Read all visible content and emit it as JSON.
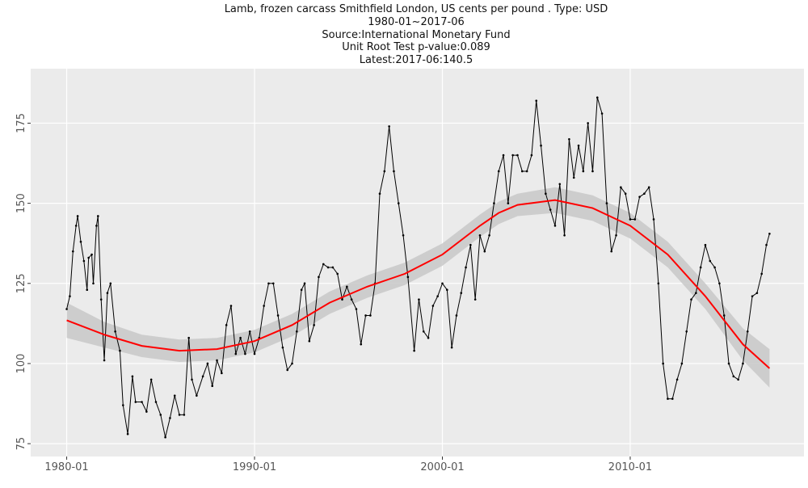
{
  "chart_data": {
    "type": "line",
    "title": "Lamb, frozen carcass Smithfield London, US cents per pound . Type: USD",
    "subtitle": [
      "1980-01~2017-06",
      "Source:International Monetary Fund",
      "Unit Root Test p-value:0.089",
      "Latest:2017-06:140.5"
    ],
    "x": [
      "1980-01",
      "1980-03",
      "1980-05",
      "1980-07",
      "1980-08",
      "1980-10",
      "1980-12",
      "1981-02",
      "1981-03",
      "1981-05",
      "1981-06",
      "1981-08",
      "1981-09",
      "1981-11",
      "1982-01",
      "1982-03",
      "1982-05",
      "1982-08",
      "1982-11",
      "1983-01",
      "1983-04",
      "1983-07",
      "1983-09",
      "1984-01",
      "1984-04",
      "1984-07",
      "1984-10",
      "1985-01",
      "1985-04",
      "1985-07",
      "1985-10",
      "1986-01",
      "1986-04",
      "1986-07",
      "1986-09",
      "1986-12",
      "1987-04",
      "1987-07",
      "1987-10",
      "1988-01",
      "1988-04",
      "1988-07",
      "1988-10",
      "1989-01",
      "1989-04",
      "1989-07",
      "1989-10",
      "1990-01",
      "1990-04",
      "1990-07",
      "1990-10",
      "1991-01",
      "1991-04",
      "1991-07",
      "1991-10",
      "1992-01",
      "1992-04",
      "1992-07",
      "1992-09",
      "1992-12",
      "1993-03",
      "1993-06",
      "1993-09",
      "1993-12",
      "1994-03",
      "1994-06",
      "1994-09",
      "1994-12",
      "1995-03",
      "1995-06",
      "1995-09",
      "1995-12",
      "1996-03",
      "1996-06",
      "1996-09",
      "1996-12",
      "1997-03",
      "1997-06",
      "1997-09",
      "1997-12",
      "1998-03",
      "1998-07",
      "1998-10",
      "1999-01",
      "1999-04",
      "1999-07",
      "1999-10",
      "2000-01",
      "2000-04",
      "2000-07",
      "2000-10",
      "2001-01",
      "2001-04",
      "2001-07",
      "2001-10",
      "2002-01",
      "2002-04",
      "2002-07",
      "2002-10",
      "2003-01",
      "2003-04",
      "2003-07",
      "2003-10",
      "2004-01",
      "2004-04",
      "2004-07",
      "2004-10",
      "2005-01",
      "2005-04",
      "2005-07",
      "2005-10",
      "2006-01",
      "2006-04",
      "2006-07",
      "2006-10",
      "2007-01",
      "2007-04",
      "2007-07",
      "2007-10",
      "2008-01",
      "2008-04",
      "2008-07",
      "2008-10",
      "2009-01",
      "2009-04",
      "2009-07",
      "2009-10",
      "2010-01",
      "2010-04",
      "2010-07",
      "2010-10",
      "2011-01",
      "2011-04",
      "2011-07",
      "2011-10",
      "2012-01",
      "2012-04",
      "2012-07",
      "2012-10",
      "2013-01",
      "2013-04",
      "2013-07",
      "2013-10",
      "2014-01",
      "2014-04",
      "2014-07",
      "2014-10",
      "2015-01",
      "2015-04",
      "2015-07",
      "2015-10",
      "2016-01",
      "2016-04",
      "2016-07",
      "2016-10",
      "2017-01",
      "2017-04",
      "2017-06"
    ],
    "values": [
      117,
      121,
      135,
      143,
      146,
      138,
      132,
      123,
      133,
      134,
      125,
      143,
      146,
      120,
      101,
      122,
      125,
      110,
      104,
      87,
      78,
      96,
      88,
      88,
      85,
      95,
      88,
      84,
      77,
      83,
      90,
      84,
      84,
      108,
      95,
      90,
      96,
      100,
      93,
      101,
      97,
      112,
      118,
      103,
      108,
      103,
      110,
      103,
      108,
      118,
      125,
      125,
      115,
      105,
      98,
      100,
      110,
      123,
      125,
      107,
      112,
      127,
      131,
      130,
      130,
      128,
      120,
      124,
      120,
      117,
      106,
      115,
      115,
      125,
      153,
      160,
      174,
      160,
      150,
      140,
      127,
      104,
      120,
      110,
      108,
      118,
      121,
      125,
      123,
      105,
      115,
      122,
      130,
      137,
      120,
      140,
      135,
      140,
      150,
      160,
      165,
      150,
      165,
      165,
      160,
      160,
      165,
      182,
      168,
      153,
      148,
      143,
      156,
      140,
      170,
      158,
      168,
      160,
      175,
      160,
      183,
      178,
      150,
      135,
      140,
      155,
      153,
      145,
      145,
      152,
      153,
      155,
      145,
      125,
      100,
      89,
      89,
      95,
      100,
      110,
      120,
      122,
      130,
      137,
      132,
      130,
      125,
      115,
      100,
      96,
      95,
      100,
      110,
      121,
      122,
      128,
      137,
      140.5
    ],
    "color": "#000000",
    "smooth": {
      "color": "#ff0000",
      "band_color": "#c8c8c8",
      "x": [
        "1980-01",
        "1982-01",
        "1984-01",
        "1986-01",
        "1988-01",
        "1990-01",
        "1992-01",
        "1994-01",
        "1996-01",
        "1998-01",
        "2000-01",
        "2002-01",
        "2003-01",
        "2004-01",
        "2006-01",
        "2008-01",
        "2010-01",
        "2012-01",
        "2014-01",
        "2016-01",
        "2017-06"
      ],
      "values": [
        113.5,
        109,
        105.5,
        104,
        104.5,
        107,
        112,
        119,
        124,
        128,
        134,
        143,
        147,
        149.5,
        151,
        148.5,
        143,
        134,
        121,
        106,
        98.5
      ],
      "lower": [
        108,
        105,
        102,
        100.5,
        101,
        103.5,
        108.5,
        115.5,
        120.5,
        124.5,
        130.5,
        139.5,
        143.5,
        146,
        147,
        144.5,
        139,
        130,
        117,
        101,
        92.5
      ],
      "upper": [
        119,
        113,
        109,
        107.5,
        108,
        110.5,
        115.5,
        122.5,
        127.5,
        131.5,
        137.5,
        146.5,
        150.5,
        153,
        155,
        152.5,
        147,
        138,
        125,
        111,
        104.5
      ]
    },
    "xlim": [
      "1978-02",
      "2019-04"
    ],
    "xticks": [
      "1980-01",
      "1990-01",
      "2000-01",
      "2010-01"
    ],
    "ylim": [
      71,
      192
    ],
    "yticks": [
      75,
      100,
      125,
      150,
      175
    ],
    "grid": true
  }
}
